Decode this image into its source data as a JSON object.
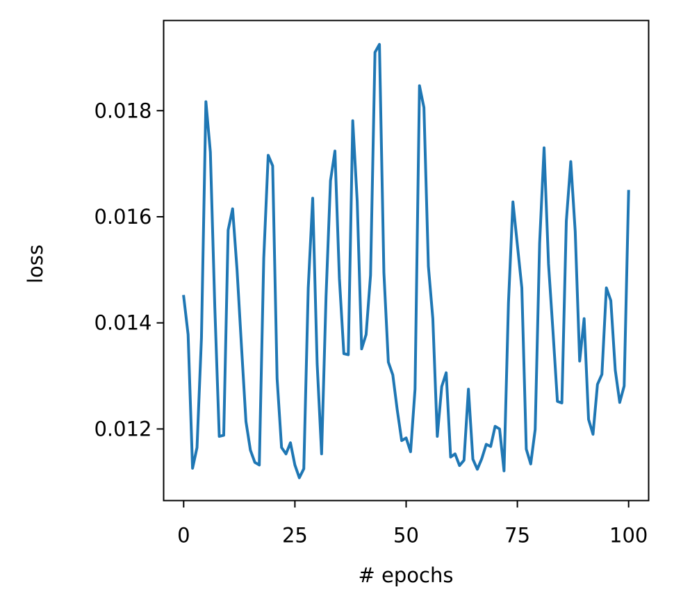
{
  "chart_data": {
    "type": "line",
    "title": "",
    "xlabel": "# epochs",
    "ylabel": "loss",
    "xlim": [
      -4.5,
      104.5
    ],
    "ylim": [
      0.01065,
      0.0197
    ],
    "xticks": [
      0,
      25,
      50,
      75,
      100
    ],
    "xtick_labels": [
      "0",
      "25",
      "50",
      "75",
      "100"
    ],
    "yticks": [
      0.012,
      0.014,
      0.016,
      0.018
    ],
    "ytick_labels": [
      "0.012",
      "0.014",
      "0.016",
      "0.018"
    ],
    "grid": false,
    "series": [
      {
        "color": "#1f77b4",
        "x": [
          0,
          1,
          2,
          3,
          4,
          5,
          6,
          7,
          8,
          9,
          10,
          11,
          12,
          13,
          14,
          15,
          16,
          17,
          18,
          19,
          20,
          21,
          22,
          23,
          24,
          25,
          26,
          27,
          28,
          29,
          30,
          31,
          32,
          33,
          34,
          35,
          36,
          37,
          38,
          39,
          40,
          41,
          42,
          43,
          44,
          45,
          46,
          47,
          48,
          49,
          50,
          51,
          52,
          53,
          54,
          55,
          56,
          57,
          58,
          59,
          60,
          61,
          62,
          63,
          64,
          65,
          66,
          67,
          68,
          69,
          70,
          71,
          72,
          73,
          74,
          75,
          76,
          77,
          78,
          79,
          80,
          81,
          82,
          83,
          84,
          85,
          86,
          87,
          88,
          89,
          90,
          91,
          92,
          93,
          94,
          95,
          96,
          97,
          98,
          99,
          100
        ],
        "y": [
          0.0145,
          0.01378,
          0.01126,
          0.01165,
          0.01372,
          0.01817,
          0.01722,
          0.0143,
          0.01186,
          0.01188,
          0.01575,
          0.01615,
          0.015,
          0.01355,
          0.01214,
          0.0116,
          0.01137,
          0.01132,
          0.01522,
          0.01716,
          0.01696,
          0.01295,
          0.01165,
          0.01153,
          0.01174,
          0.01132,
          0.01108,
          0.01125,
          0.01466,
          0.01635,
          0.01323,
          0.01153,
          0.0145,
          0.01668,
          0.01724,
          0.01484,
          0.01342,
          0.0134,
          0.01781,
          0.0163,
          0.01351,
          0.01378,
          0.0149,
          0.0191,
          0.01925,
          0.01495,
          0.01326,
          0.01302,
          0.01236,
          0.01178,
          0.01183,
          0.01157,
          0.01275,
          0.01847,
          0.01806,
          0.01507,
          0.01408,
          0.01186,
          0.0128,
          0.01306,
          0.01147,
          0.01153,
          0.01131,
          0.01141,
          0.01275,
          0.01143,
          0.01124,
          0.01144,
          0.01171,
          0.01167,
          0.01205,
          0.012,
          0.01121,
          0.01438,
          0.01628,
          0.01547,
          0.01466,
          0.01162,
          0.01134,
          0.01199,
          0.0155,
          0.0173,
          0.01511,
          0.01384,
          0.01252,
          0.01249,
          0.01592,
          0.01704,
          0.01572,
          0.01328,
          0.01408,
          0.01218,
          0.0119,
          0.01284,
          0.01303,
          0.01466,
          0.01442,
          0.01311,
          0.0125,
          0.01281,
          0.01648
        ]
      }
    ]
  }
}
